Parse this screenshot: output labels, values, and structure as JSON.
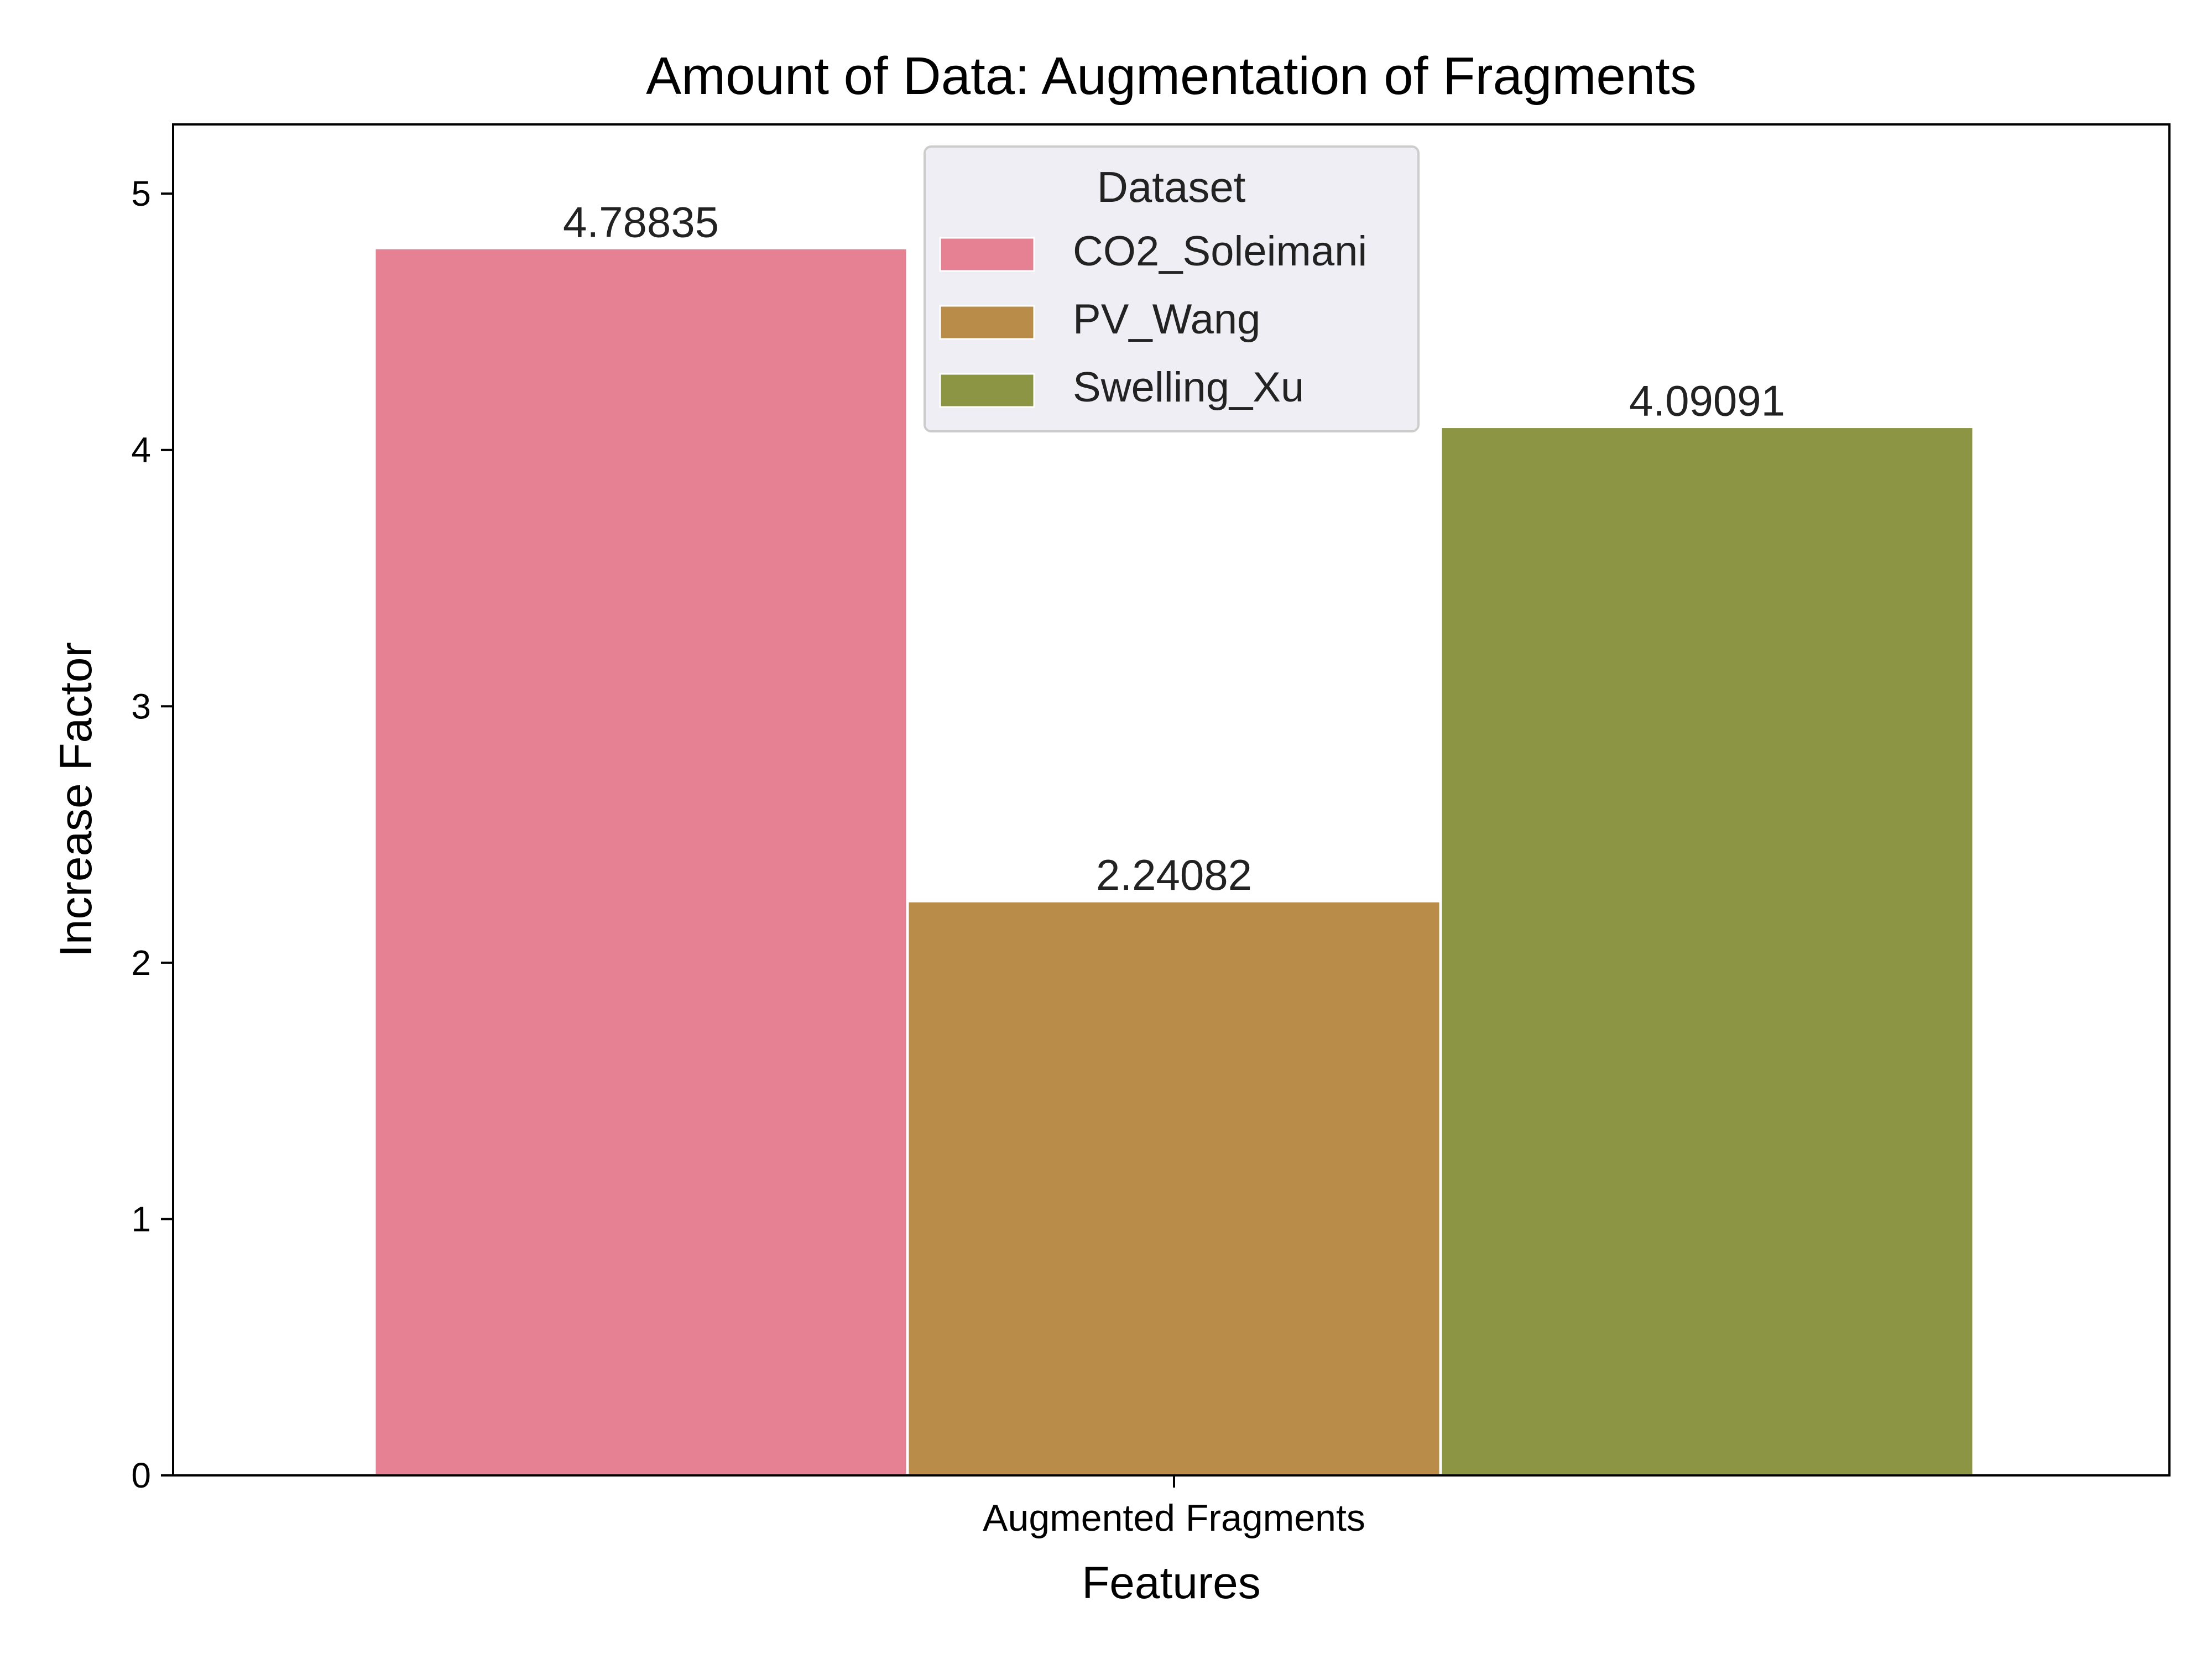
{
  "chart_data": {
    "type": "bar",
    "title": "Amount of Data: Augmentation of Fragments",
    "xlabel": "Features",
    "ylabel": "Increase Factor",
    "categories": [
      "Augmented Fragments"
    ],
    "series": [
      {
        "name": "CO2_Soleimani",
        "values": [
          4.78835
        ],
        "label": "4.78835",
        "color": "#e68193"
      },
      {
        "name": "PV_Wang",
        "values": [
          2.24082
        ],
        "label": "2.24082",
        "color": "#ba8c49"
      },
      {
        "name": "Swelling_Xu",
        "values": [
          4.09091
        ],
        "label": "4.09091",
        "color": "#8c9543"
      }
    ],
    "ylim": [
      0,
      5.27
    ],
    "yticks": [
      0,
      1,
      2,
      3,
      4,
      5
    ],
    "grid": false,
    "legend": {
      "title": "Dataset",
      "placement": "upper center"
    }
  }
}
